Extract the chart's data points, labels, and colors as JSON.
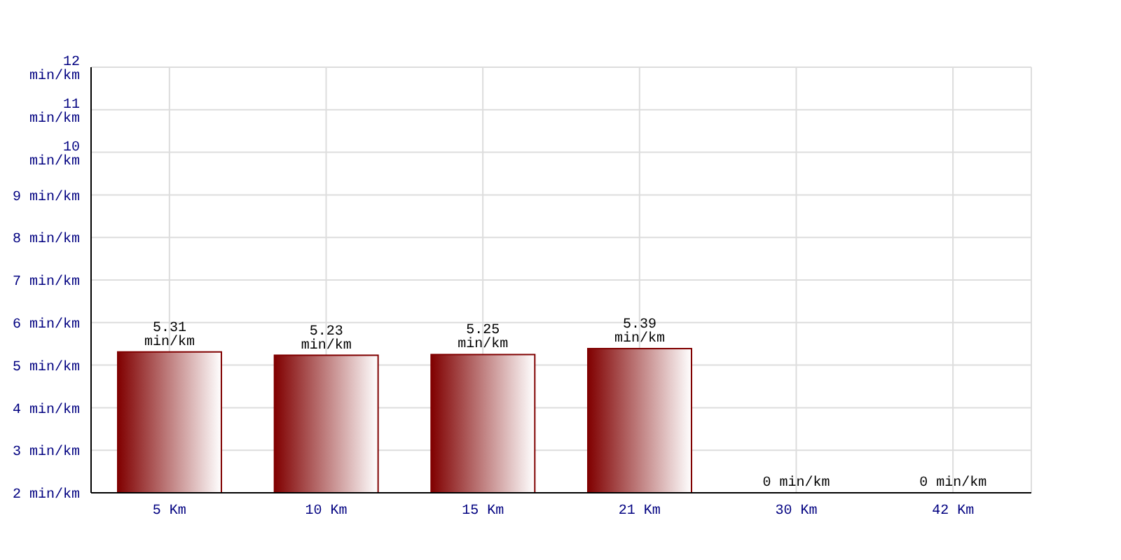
{
  "chart_data": {
    "type": "bar",
    "categories": [
      "5 Km",
      "10 Km",
      "15 Km",
      "21 Km",
      "30 Km",
      "42 Km"
    ],
    "values": [
      5.31,
      5.23,
      5.25,
      5.39,
      null,
      null
    ],
    "value_labels": [
      "5.31 min/km",
      "5.23 min/km",
      "5.25 min/km",
      "5.39 min/km",
      null,
      null
    ],
    "color": "#800000",
    "ylim": [
      2,
      12
    ],
    "yticks": [
      {
        "value": 2,
        "label": "2 min/km"
      },
      {
        "value": 3,
        "label": "3 min/km"
      },
      {
        "value": 4,
        "label": "4 min/km"
      },
      {
        "value": 5,
        "label": "5 min/km"
      },
      {
        "value": 6,
        "label": "6 min/km"
      },
      {
        "value": 7,
        "label": "7 min/km"
      },
      {
        "value": 8,
        "label": "8 min/km"
      },
      {
        "value": 9,
        "label": "9 min/km"
      },
      {
        "value": 10,
        "label": "10 min/km"
      },
      {
        "value": 11,
        "label": "11 min/km"
      },
      {
        "value": 12,
        "label": "12 min/km"
      }
    ],
    "annotations": [
      "0 min/km",
      "0 min/km"
    ],
    "grid": true,
    "legend": false
  }
}
